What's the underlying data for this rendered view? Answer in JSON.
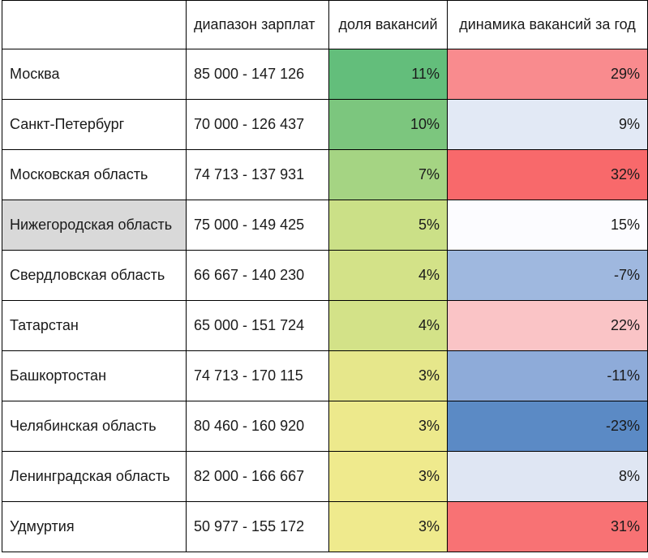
{
  "table": {
    "headers": {
      "region": "",
      "salary": "диапазон зарплат",
      "share": "доля вакансий",
      "dynamics": "динамика вакансий за год"
    },
    "rows": [
      {
        "region": "Москва",
        "salary": "85 000 - 147 126",
        "share": "11%",
        "dynamics": "29%",
        "region_bg": "#ffffff",
        "share_bg": "#63be7b",
        "dynamics_bg": "#f98b8e"
      },
      {
        "region": "Санкт-Петербург",
        "salary": "70 000 - 126 437",
        "share": "10%",
        "dynamics": "9%",
        "region_bg": "#ffffff",
        "share_bg": "#7cc67e",
        "dynamics_bg": "#e2e9f5"
      },
      {
        "region": "Московская область",
        "salary": "74 713 - 137 931",
        "share": "7%",
        "dynamics": "32%",
        "region_bg": "#ffffff",
        "share_bg": "#a5d483",
        "dynamics_bg": "#f8696b"
      },
      {
        "region": "Нижегородская область",
        "salary": "75 000 - 149 425",
        "share": "5%",
        "dynamics": "15%",
        "region_bg": "#d9d9d9",
        "share_bg": "#cbe087",
        "dynamics_bg": "#fcfcff"
      },
      {
        "region": "Свердловская область",
        "salary": "66 667 - 140 230",
        "share": "4%",
        "dynamics": "-7%",
        "region_bg": "#ffffff",
        "share_bg": "#d3e288",
        "dynamics_bg": "#9fb8df"
      },
      {
        "region": "Татарстан",
        "salary": "65 000 - 151 724",
        "share": "4%",
        "dynamics": "22%",
        "region_bg": "#ffffff",
        "share_bg": "#d3e288",
        "dynamics_bg": "#fac4c6"
      },
      {
        "region": "Башкортостан",
        "salary": "74 713 - 170 115",
        "share": "3%",
        "dynamics": "-11%",
        "region_bg": "#ffffff",
        "share_bg": "#e6e78b",
        "dynamics_bg": "#8eabd9"
      },
      {
        "region": "Челябинская область",
        "salary": "80 460 - 160 920",
        "share": "3%",
        "dynamics": "-23%",
        "region_bg": "#ffffff",
        "share_bg": "#ede98c",
        "dynamics_bg": "#5b8ac5"
      },
      {
        "region": "Ленинградская область",
        "salary": "82 000 - 166 667",
        "share": "3%",
        "dynamics": "8%",
        "region_bg": "#ffffff",
        "share_bg": "#efea8d",
        "dynamics_bg": "#dfe6f3"
      },
      {
        "region": "Удмуртия",
        "salary": "50 977 - 155 172",
        "share": "3%",
        "dynamics": "31%",
        "region_bg": "#ffffff",
        "share_bg": "#efea8d",
        "dynamics_bg": "#f87274"
      }
    ]
  }
}
